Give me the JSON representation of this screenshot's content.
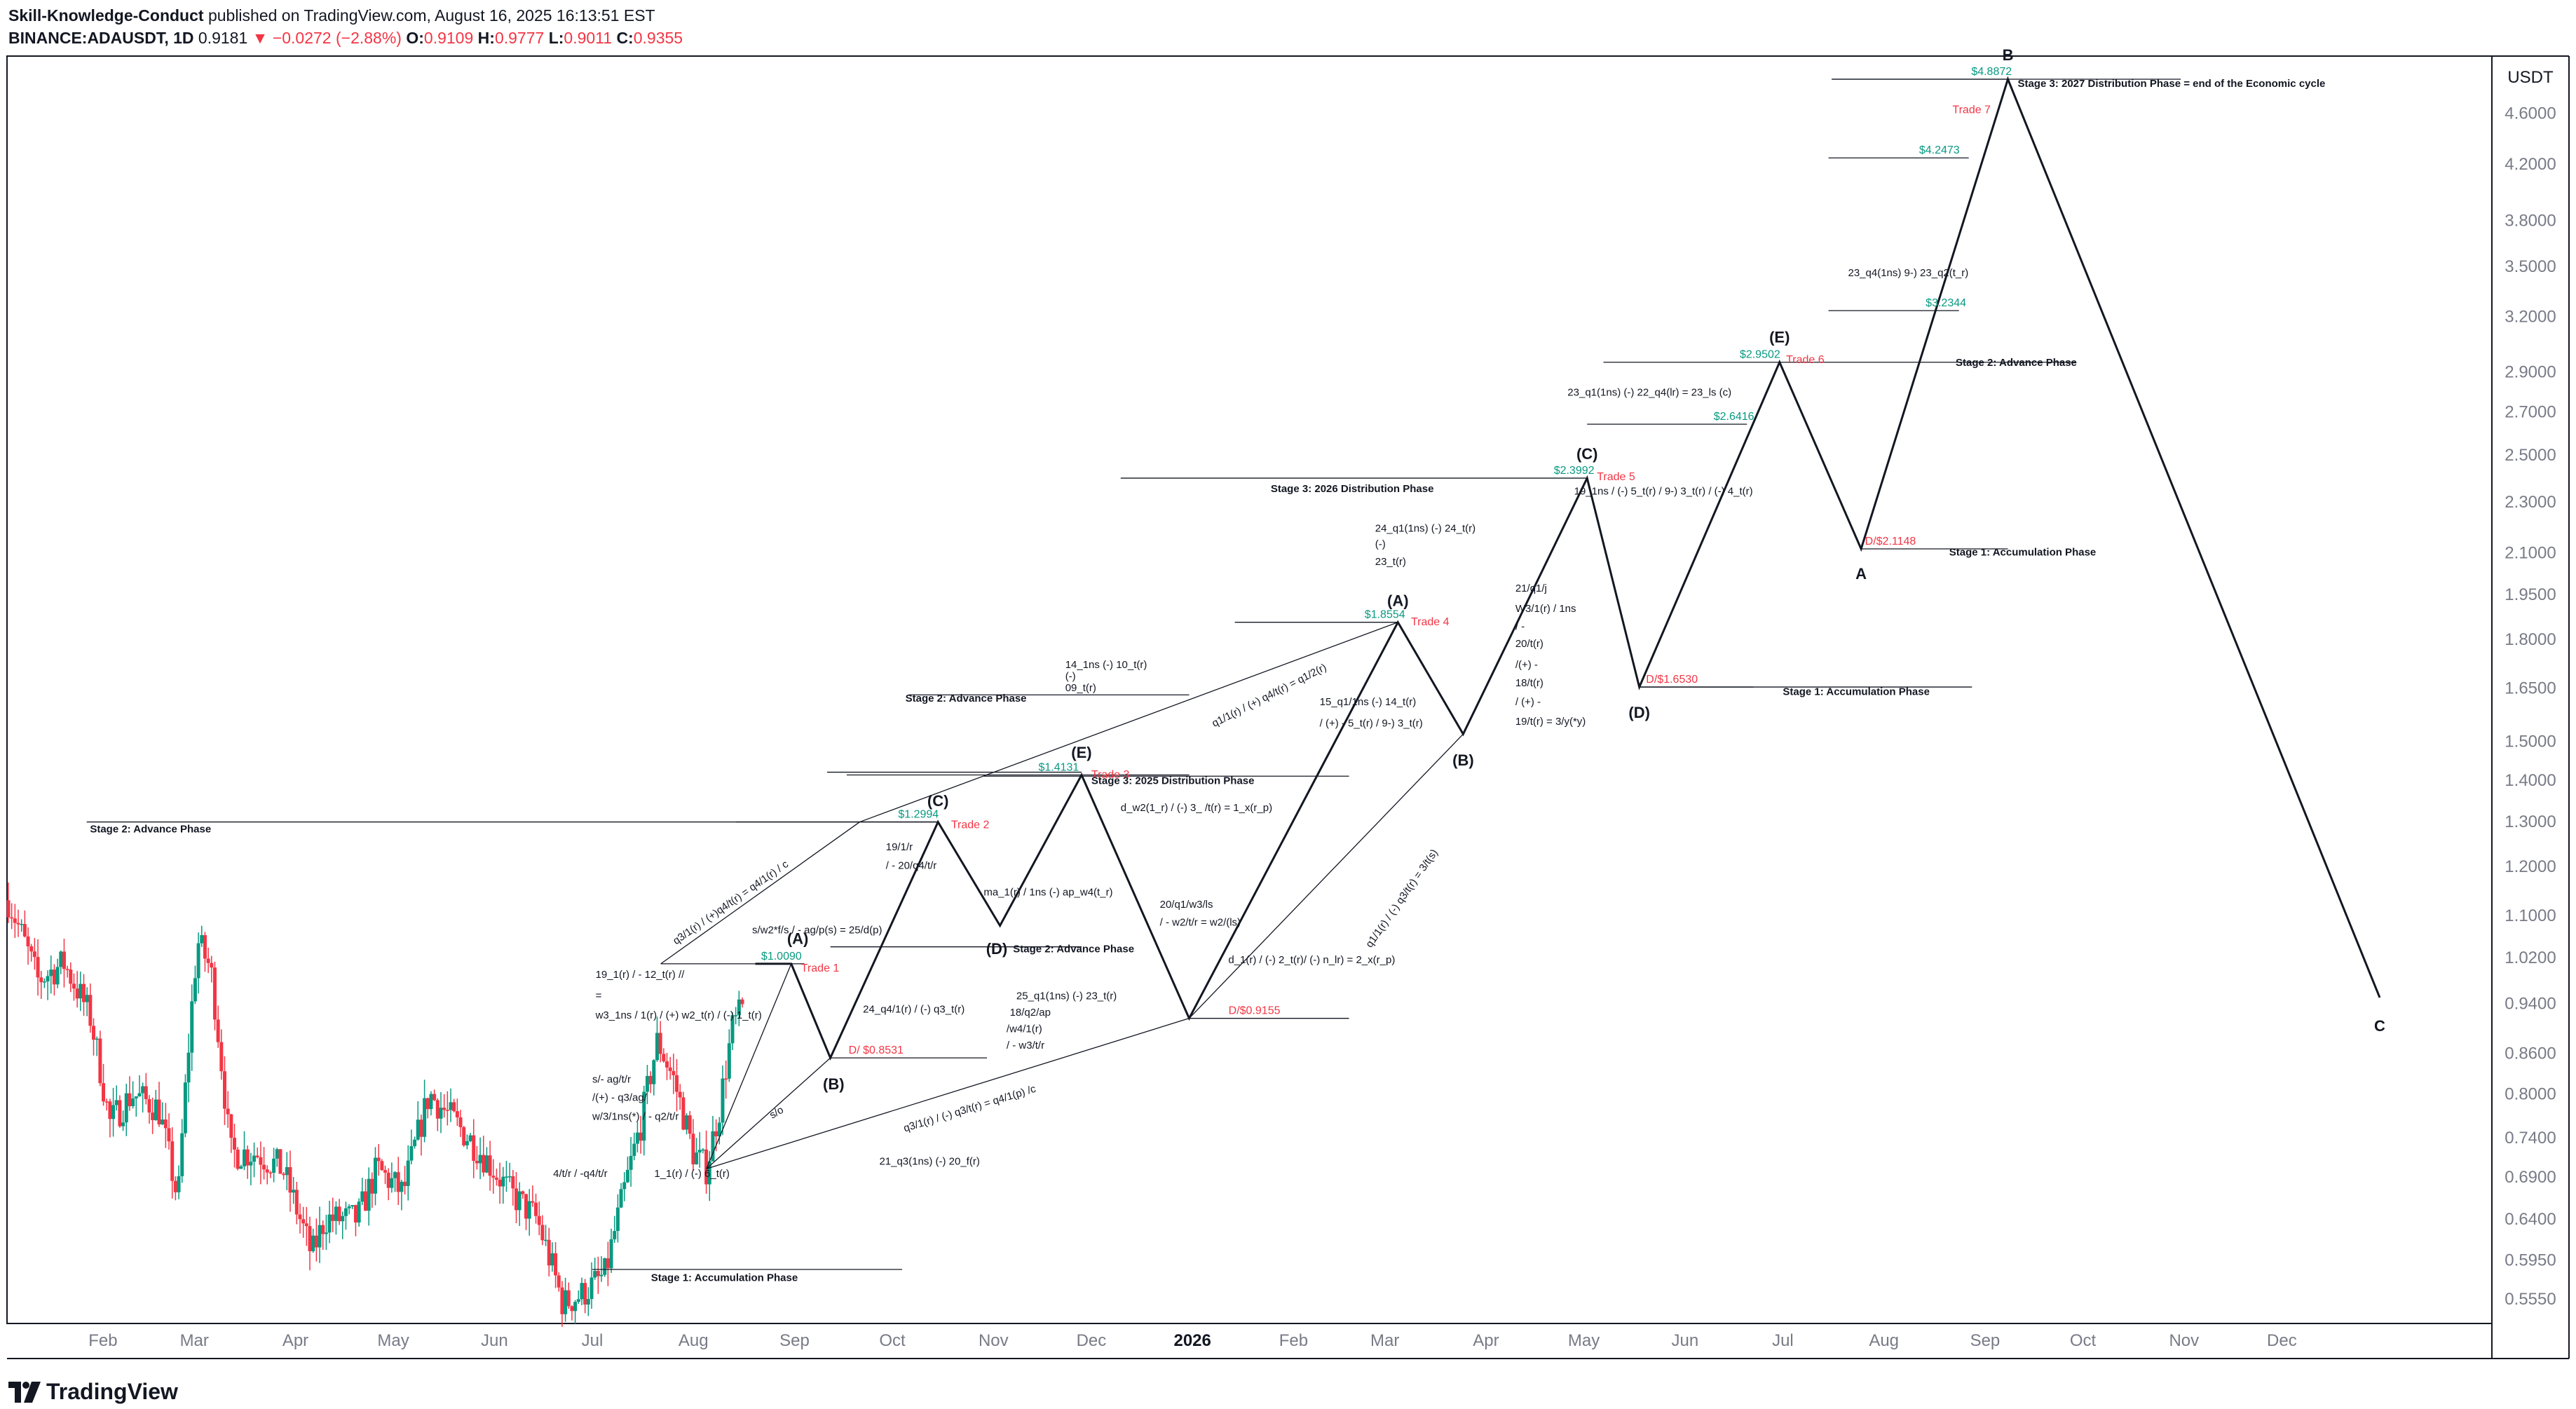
{
  "header": {
    "author": "Skill-Knowledge-Conduct",
    "published_text": " published on TradingView.com, August 16, 2025 16:13:51 EST",
    "symbol": "BINANCE:ADAUSDT, 1D",
    "last": "0.9181",
    "change": "−0.0272 (−2.88%)",
    "o_label": "O:",
    "o": "0.9109",
    "h_label": "H:",
    "h": "0.9777",
    "l_label": "L:",
    "l": "0.9011",
    "c_label": "C:",
    "c": "0.9355",
    "down_arrow": "▼"
  },
  "footer": {
    "brand": "TradingView",
    "logo_icon": "tradingview-logo"
  },
  "colors": {
    "up": "#089981",
    "down": "#f23645",
    "green_text": "#089981",
    "red_text": "#f23645",
    "line": "#131722",
    "axis_text": "#787b86"
  },
  "chart_data": {
    "type": "line",
    "title": "",
    "scale": "log",
    "y_unit": "USDT",
    "xlim": [
      "2025-01-03",
      "2026-12-31"
    ],
    "ylim": [
      0.51,
      5.2
    ],
    "yticks": [
      4.6,
      4.2,
      3.8,
      3.5,
      3.2,
      2.9,
      2.7,
      2.5,
      2.3,
      2.1,
      1.95,
      1.8,
      1.65,
      1.5,
      1.4,
      1.3,
      1.2,
      1.1,
      1.02,
      0.94,
      0.86,
      0.8,
      0.74,
      0.69,
      0.64,
      0.595,
      0.555
    ],
    "ytick_labels": [
      "4.6000",
      "4.2000",
      "3.8000",
      "3.5000",
      "3.2000",
      "2.9000",
      "2.7000",
      "2.5000",
      "2.3000",
      "2.1000",
      "1.9500",
      "1.8000",
      "1.6500",
      "1.5000",
      "1.4000",
      "1.3000",
      "1.2000",
      "1.1000",
      "1.0200",
      "0.9400",
      "0.8600",
      "0.8000",
      "0.7400",
      "0.6900",
      "0.6400",
      "0.5950",
      "0.5550"
    ],
    "xticks": [
      {
        "date": "2025-02-01",
        "label": "Feb"
      },
      {
        "date": "2025-03-01",
        "label": "Mar"
      },
      {
        "date": "2025-04-01",
        "label": "Apr"
      },
      {
        "date": "2025-05-01",
        "label": "May"
      },
      {
        "date": "2025-06-01",
        "label": "Jun"
      },
      {
        "date": "2025-07-01",
        "label": "Jul"
      },
      {
        "date": "2025-08-01",
        "label": "Aug"
      },
      {
        "date": "2025-09-01",
        "label": "Sep"
      },
      {
        "date": "2025-10-01",
        "label": "Oct"
      },
      {
        "date": "2025-11-01",
        "label": "Nov"
      },
      {
        "date": "2025-12-01",
        "label": "Dec"
      },
      {
        "date": "2026-01-01",
        "label": "2026",
        "bold": true
      },
      {
        "date": "2026-02-01",
        "label": "Feb"
      },
      {
        "date": "2026-03-01",
        "label": "Mar"
      },
      {
        "date": "2026-04-01",
        "label": "Apr"
      },
      {
        "date": "2026-05-01",
        "label": "May"
      },
      {
        "date": "2026-06-01",
        "label": "Jun"
      },
      {
        "date": "2026-07-01",
        "label": "Jul"
      },
      {
        "date": "2026-08-01",
        "label": "Aug"
      },
      {
        "date": "2026-09-01",
        "label": "Sep"
      },
      {
        "date": "2026-10-01",
        "label": "Oct"
      },
      {
        "date": "2026-11-01",
        "label": "Nov"
      },
      {
        "date": "2026-12-01",
        "label": "Dec"
      }
    ],
    "price_path": [
      [
        "2025-01-03",
        1.13
      ],
      [
        "2025-01-12",
        0.98
      ],
      [
        "2025-01-20",
        1.01
      ],
      [
        "2025-01-28",
        0.92
      ],
      [
        "2025-02-03",
        0.76
      ],
      [
        "2025-02-10",
        0.8
      ],
      [
        "2025-02-18",
        0.78
      ],
      [
        "2025-02-24",
        0.66
      ],
      [
        "2025-03-02",
        1.05
      ],
      [
        "2025-03-06",
        1.0
      ],
      [
        "2025-03-12",
        0.72
      ],
      [
        "2025-03-20",
        0.72
      ],
      [
        "2025-03-28",
        0.7
      ],
      [
        "2025-04-06",
        0.6
      ],
      [
        "2025-04-10",
        0.64
      ],
      [
        "2025-04-20",
        0.64
      ],
      [
        "2025-04-26",
        0.7
      ],
      [
        "2025-05-04",
        0.67
      ],
      [
        "2025-05-12",
        0.8
      ],
      [
        "2025-05-20",
        0.76
      ],
      [
        "2025-05-28",
        0.72
      ],
      [
        "2025-06-06",
        0.67
      ],
      [
        "2025-06-14",
        0.64
      ],
      [
        "2025-06-22",
        0.55
      ],
      [
        "2025-06-28",
        0.56
      ],
      [
        "2025-07-05",
        0.58
      ],
      [
        "2025-07-10",
        0.66
      ],
      [
        "2025-07-16",
        0.76
      ],
      [
        "2025-07-21",
        0.88
      ],
      [
        "2025-07-26",
        0.82
      ],
      [
        "2025-08-01",
        0.72
      ],
      [
        "2025-08-05",
        0.7
      ],
      [
        "2025-08-09",
        0.78
      ],
      [
        "2025-08-13",
        0.9
      ],
      [
        "2025-08-16",
        0.93
      ]
    ],
    "candles": {
      "count": 225,
      "start": "2025-01-03",
      "end": "2025-08-16"
    },
    "price_range_note": "candles drawn from price_path",
    "projection_path": [
      [
        "2025-08-20",
        1.009
      ],
      [
        "2025-08-31",
        1.009
      ],
      [
        "2025-09-12",
        0.8531
      ],
      [
        "2025-10-15",
        1.2994
      ],
      [
        "2025-11-03",
        1.08
      ],
      [
        "2025-11-28",
        1.4131
      ],
      [
        "2025-12-31",
        0.9155
      ],
      [
        "2026-03-05",
        1.8554
      ],
      [
        "2026-03-25",
        1.52
      ],
      [
        "2026-05-02",
        2.3992
      ],
      [
        "2026-05-18",
        1.653
      ],
      [
        "2026-06-30",
        2.9502
      ],
      [
        "2026-07-25",
        2.1148
      ],
      [
        "2026-09-08",
        4.8872
      ],
      [
        "2026-12-31",
        0.95
      ]
    ],
    "wave_labels": [
      {
        "text": "(A)",
        "date": "2025-09-02",
        "value": 1.04,
        "pos": "above"
      },
      {
        "text": "(B)",
        "date": "2025-09-13",
        "value": 0.825,
        "pos": "below"
      },
      {
        "text": "(C)",
        "date": "2025-10-15",
        "value": 1.33,
        "pos": "above"
      },
      {
        "text": "(D)",
        "date": "2025-11-02",
        "value": 1.05,
        "pos": "below"
      },
      {
        "text": "(E)",
        "date": "2025-11-28",
        "value": 1.45,
        "pos": "above"
      },
      {
        "text": "(A)",
        "date": "2026-03-05",
        "value": 1.9,
        "pos": "above"
      },
      {
        "text": "(B)",
        "date": "2026-03-25",
        "value": 1.47,
        "pos": "below"
      },
      {
        "text": "(C)",
        "date": "2026-05-02",
        "value": 2.47,
        "pos": "above"
      },
      {
        "text": "(D)",
        "date": "2026-05-18",
        "value": 1.6,
        "pos": "below"
      },
      {
        "text": "(E)",
        "date": "2026-06-30",
        "value": 3.04,
        "pos": "above"
      },
      {
        "text": "A",
        "date": "2026-07-25",
        "value": 2.05,
        "pos": "below"
      },
      {
        "text": "B",
        "date": "2026-09-08",
        "value": 5.03,
        "pos": "above"
      },
      {
        "text": "C",
        "date": "2026-12-31",
        "value": 0.915,
        "pos": "below"
      }
    ],
    "price_levels": [
      {
        "text": "$1.0090",
        "color": "green",
        "date": "2025-08-28",
        "value": 1.009,
        "x1": "2025-07-22",
        "x2": "2025-09-04"
      },
      {
        "text": "D/ $0.8531",
        "color": "red",
        "date": "2025-09-26",
        "value": 0.8531,
        "x1": "2025-09-12",
        "x2": "2025-10-30"
      },
      {
        "text": "$1.2994",
        "color": "green",
        "date": "2025-10-09",
        "value": 1.2994,
        "x1": "2025-08-14",
        "x2": "2025-10-15"
      },
      {
        "text": "$1.4131",
        "color": "green",
        "date": "2025-11-21",
        "value": 1.4131,
        "x1": "2025-09-17",
        "x2": "2025-12-31"
      },
      {
        "text": "D/$0.9155",
        "color": "red",
        "date": "2026-01-20",
        "value": 0.9155,
        "x1": "2025-12-31",
        "x2": "2026-02-18"
      },
      {
        "text": "$1.8554",
        "color": "green",
        "date": "2026-03-01",
        "value": 1.8554,
        "x1": "2026-01-14",
        "x2": "2026-03-05"
      },
      {
        "text": "$2.3992",
        "color": "green",
        "date": "2026-04-28",
        "value": 2.3992,
        "x1": "2025-12-10",
        "x2": "2026-05-02"
      },
      {
        "text": "D/$1.6530",
        "color": "red",
        "date": "2026-05-28",
        "value": 1.653,
        "x1": "2026-05-18",
        "x2": "2026-06-22"
      },
      {
        "text": "$2.6416",
        "color": "green",
        "date": "2026-06-16",
        "value": 2.6416,
        "x1": "2026-05-02",
        "x2": "2026-06-20"
      },
      {
        "text": "$2.9502",
        "color": "green",
        "date": "2026-06-24",
        "value": 2.9502,
        "x1": "2026-05-07",
        "x2": "2026-06-30"
      },
      {
        "text": "D/$2.1148",
        "color": "red",
        "date": "2026-08-03",
        "value": 2.1148,
        "x1": "2026-07-25",
        "x2": "2026-08-10"
      },
      {
        "text": "$3.2344",
        "color": "green",
        "date": "2026-08-20",
        "value": 3.2344,
        "x1": "2026-07-15",
        "x2": "2026-08-24"
      },
      {
        "text": "$4.2473",
        "color": "green",
        "date": "2026-08-18",
        "value": 4.2473,
        "x1": "2026-07-15",
        "x2": "2026-08-27"
      },
      {
        "text": "$4.8872",
        "color": "green",
        "date": "2026-09-03",
        "value": 4.8872,
        "x1": "2026-07-16",
        "x2": "2026-09-08"
      }
    ],
    "extra_lines": [
      {
        "x1": "2025-01-27",
        "x2": "2025-09-21",
        "value": 1.2994
      },
      {
        "x1": "2025-09-21",
        "x2": "2025-10-15",
        "value": 1.2994
      },
      {
        "x1": "2025-10-29",
        "x2": "2026-02-18",
        "value": 1.41
      },
      {
        "x1": "2025-09-11",
        "x2": "2025-11-28",
        "value": 1.42
      },
      {
        "x1": "2025-09-12",
        "x2": "2025-11-28",
        "value": 1.04
      },
      {
        "x1": "2025-07-01",
        "x2": "2025-10-04",
        "value": 0.585
      },
      {
        "x1": "2025-10-06",
        "x2": "2025-12-31",
        "value": 1.63
      },
      {
        "x1": "2026-05-18",
        "x2": "2026-08-28",
        "value": 1.653
      },
      {
        "x1": "2026-08-10",
        "x2": "2026-09-08",
        "value": 2.1148
      },
      {
        "x1": "2026-06-30",
        "x2": "2026-09-29",
        "value": 2.95
      },
      {
        "x1": "2026-07-16",
        "x2": "2026-10-31",
        "value": 4.8872
      }
    ],
    "trend_lines": [
      [
        "2025-08-05",
        0.7,
        "2025-08-31",
        1.009
      ],
      [
        "2025-08-05",
        0.7,
        "2025-09-12",
        0.8531
      ],
      [
        "2025-08-05",
        0.7,
        "2025-12-31",
        0.9155
      ],
      [
        "2025-07-22",
        1.009,
        "2025-09-21",
        1.2994
      ],
      [
        "2025-09-21",
        1.2994,
        "2026-03-05",
        1.8554
      ],
      [
        "2025-12-31",
        0.9155,
        "2026-03-25",
        1.52
      ],
      [
        "2025-11-28",
        1.4131,
        "2025-12-31",
        0.9155
      ]
    ],
    "trade_labels": [
      {
        "text": "Trade 1",
        "date": "2025-09-03",
        "value": 0.995
      },
      {
        "text": "Trade 2",
        "date": "2025-10-19",
        "value": 1.285
      },
      {
        "text": "Trade 3",
        "date": "2025-12-01",
        "value": 1.405
      },
      {
        "text": "Trade 4",
        "date": "2026-03-09",
        "value": 1.845
      },
      {
        "text": "Trade 5",
        "date": "2026-05-05",
        "value": 2.39
      },
      {
        "text": "Trade 6",
        "date": "2026-07-02",
        "value": 2.945
      },
      {
        "text": "Trade 7",
        "date": "2026-08-22",
        "value": 4.6
      }
    ],
    "stage_labels": [
      {
        "text": "Stage 2: Advance Phase",
        "date": "2025-01-28",
        "value": 1.275
      },
      {
        "text": "Stage 1: Accumulation Phase",
        "date": "2025-07-19",
        "value": 0.573
      },
      {
        "text": "Stage 2: Advance Phase",
        "date": "2025-10-05",
        "value": 1.61
      },
      {
        "text": "Stage 3: 2025 Distribution Phase",
        "date": "2025-12-01",
        "value": 1.39
      },
      {
        "text": "Stage 2: Advance Phase",
        "date": "2025-11-07",
        "value": 1.03
      },
      {
        "text": "Stage 3: 2026 Distribution Phase",
        "date": "2026-01-25",
        "value": 2.34
      },
      {
        "text": "Stage 1: Accumulation Phase",
        "date": "2026-07-01",
        "value": 1.63
      },
      {
        "text": "Stage 1: Accumulation Phase",
        "date": "2026-08-21",
        "value": 2.09
      },
      {
        "text": "Stage 2: Advance Phase",
        "date": "2026-08-23",
        "value": 2.93
      },
      {
        "text": "Stage 3: 2027 Distribution Phase = end of the Economic cycle",
        "date": "2026-09-11",
        "value": 4.82
      }
    ],
    "annotations": [
      {
        "text": "19_1(r) / - 12_t(r) //",
        "date": "2025-07-02",
        "value": 0.984
      },
      {
        "text": "=",
        "date": "2025-07-02",
        "value": 0.948
      },
      {
        "text": "w3_1ns / 1(r) / (+) w2_t(r) / (-) 1_t(r)",
        "date": "2025-07-02",
        "value": 0.915
      },
      {
        "text": "s/- ag/t/r",
        "date": "2025-07-01",
        "value": 0.816
      },
      {
        "text": "/(+) - q3/ag/",
        "date": "2025-07-01",
        "value": 0.79
      },
      {
        "text": "w/3/1ns(*) / - q2/t/r",
        "date": "2025-07-01",
        "value": 0.764
      },
      {
        "text": "4/t/r / -q4/t/r",
        "date": "2025-06-19",
        "value": 0.69
      },
      {
        "text": "1_1(r) / (-) 6_t(r)",
        "date": "2025-07-20",
        "value": 0.69
      },
      {
        "text": "s/w2*f/s / - ag/p(s) = 25/d(p)",
        "date": "2025-08-19",
        "value": 1.065
      },
      {
        "text": "19/1/r",
        "date": "2025-09-29",
        "value": 1.235
      },
      {
        "text": "/ - 20/q4/t/r",
        "date": "2025-09-29",
        "value": 1.195
      },
      {
        "text": "24_q4/1(r) / (-) q3_t(r)",
        "date": "2025-09-22",
        "value": 0.925
      },
      {
        "text": "21_q3(1ns) (-) 20_f(r)",
        "date": "2025-09-27",
        "value": 0.705
      },
      {
        "text": "25_q1(1ns) (-) 23_t(r)",
        "date": "2025-11-08",
        "value": 0.947
      },
      {
        "text": "18/q2/ap",
        "date": "2025-11-06",
        "value": 0.92
      },
      {
        "text": "/w4/1(r)",
        "date": "2025-11-05",
        "value": 0.893
      },
      {
        "text": "/ - w3/t/r",
        "date": "2025-11-05",
        "value": 0.867
      },
      {
        "text": "ma_1(r) / 1ns (-) ap_w4(t_r)",
        "date": "2025-10-29",
        "value": 1.14
      },
      {
        "text": "14_1ns (-) 10_t(r)",
        "date": "2025-11-23",
        "value": 1.71
      },
      {
        "text": "(-)",
        "date": "2025-11-23",
        "value": 1.675
      },
      {
        "text": "09_t(r)",
        "date": "2025-11-23",
        "value": 1.641
      },
      {
        "text": "d_w2(1_r) / (-) 3_ /t(r) = 1_x(r_p)",
        "date": "2025-12-10",
        "value": 1.325
      },
      {
        "text": "20/q1/w3/ls",
        "date": "2025-12-22",
        "value": 1.115
      },
      {
        "text": "/ - w2/t/r = w2/(ls)",
        "date": "2025-12-22",
        "value": 1.08
      },
      {
        "text": "d_1(r) / (-) 2_t(r)/ (-)  n_lr) = 2_x(r_p)",
        "date": "2026-01-12",
        "value": 1.01
      },
      {
        "text": "24_q1(1ns) (-) 24_t(r)",
        "date": "2026-02-26",
        "value": 2.18
      },
      {
        "text": "(-)",
        "date": "2026-02-26",
        "value": 2.12
      },
      {
        "text": "23_t(r)",
        "date": "2026-02-26",
        "value": 2.055
      },
      {
        "text": "15_q1/1ns (-) 14_t(r)",
        "date": "2026-02-09",
        "value": 1.6
      },
      {
        "text": "/ (+) - 5_t(r) / 9-) 3_t(r)",
        "date": "2026-02-09",
        "value": 1.54
      },
      {
        "text": "21/q1/j",
        "date": "2026-04-10",
        "value": 1.96
      },
      {
        "text": "W3/1(r) / 1ns",
        "date": "2026-04-10",
        "value": 1.89
      },
      {
        "text": "/ -",
        "date": "2026-04-10",
        "value": 1.83
      },
      {
        "text": "20/t(r)",
        "date": "2026-04-10",
        "value": 1.775
      },
      {
        "text": "/(+) -",
        "date": "2026-04-10",
        "value": 1.71
      },
      {
        "text": "18/t(r)",
        "date": "2026-04-10",
        "value": 1.655
      },
      {
        "text": "/ (+) -",
        "date": "2026-04-10",
        "value": 1.6
      },
      {
        "text": "19/t(r)  = 3/y(*y)",
        "date": "2026-04-10",
        "value": 1.545
      },
      {
        "text": "19_1ns / (-) 5_t(r) / 9-) 3_t(r) / (-) 4_t(r)",
        "date": "2026-04-28",
        "value": 2.33
      },
      {
        "text": "23_q1(1ns) (-) 22_q4(lr) = 23_ls (c)",
        "date": "2026-04-26",
        "value": 2.78
      },
      {
        "text": "23_q4(1ns) 9-) 23_q2(t_r)",
        "date": "2026-07-21",
        "value": 3.44
      }
    ],
    "rotated_annotations": [
      {
        "text": "q3/1(r) / (+)q4/t(r) = q4/1(r) / c",
        "date": "2025-08-13",
        "value": 1.12,
        "angle": -35
      },
      {
        "text": "q3/1(r) / (-) q3/t(r) = q4/1(p) /c",
        "date": "2025-10-25",
        "value": 0.775,
        "angle": -17
      },
      {
        "text": "q1/1(r) / (+) q4/t(r) = q1/2(r)",
        "date": "2026-01-25",
        "value": 1.62,
        "angle": -27
      },
      {
        "text": "q1/1(r) / (-) q3/t(r) = 3/t(s)",
        "date": "2026-03-07",
        "value": 1.13,
        "angle": -55
      },
      {
        "text": "s/o",
        "date": "2025-08-27",
        "value": 0.77,
        "angle": -30
      }
    ]
  }
}
